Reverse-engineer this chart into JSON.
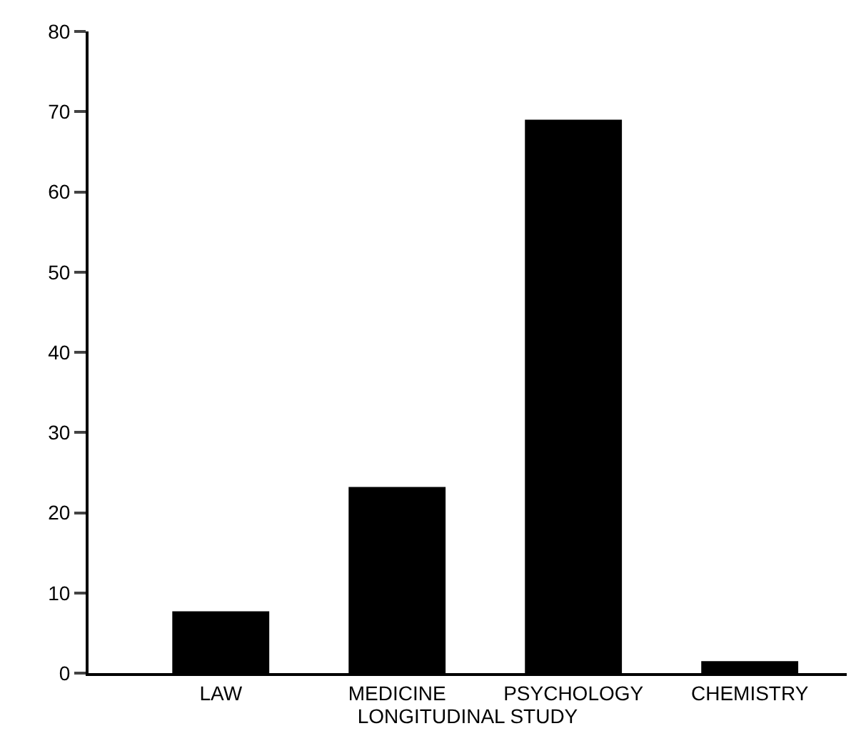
{
  "chart_data": {
    "type": "bar",
    "categories": [
      "LAW",
      "MEDICINE",
      "PSYCHOLOGY",
      "CHEMISTRY"
    ],
    "values": [
      7.7,
      23.2,
      69,
      1.5
    ],
    "color": "#000000",
    "xlabel": "LONGITUDINAL STUDY",
    "ylim": [
      0,
      80
    ],
    "yticks": [
      0,
      10,
      20,
      30,
      40,
      50,
      60,
      70,
      80
    ],
    "grid": false
  }
}
